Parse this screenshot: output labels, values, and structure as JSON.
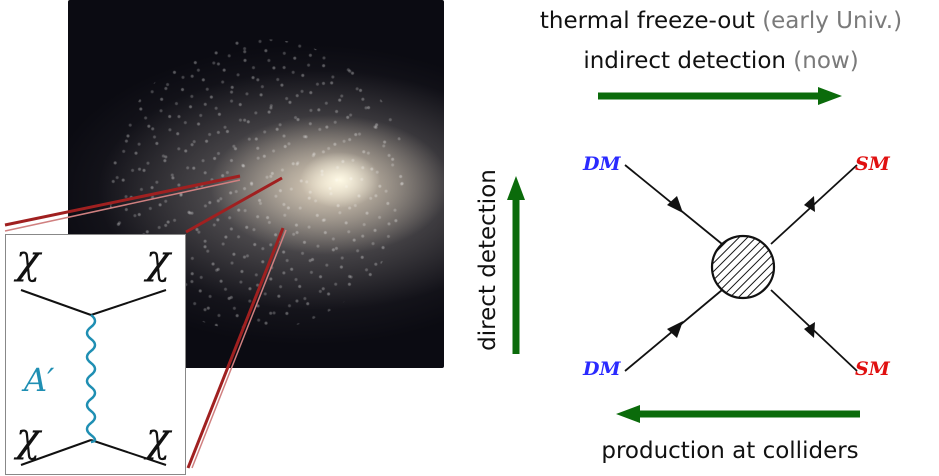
{
  "captions": {
    "freeze_out": "thermal freeze-out",
    "freeze_out_note": "(early Univ.)",
    "indirect": "indirect detection",
    "indirect_note": "(now)",
    "direct": "direct detection",
    "production": "production at colliders"
  },
  "vertex_labels": {
    "top_left": "DM",
    "top_right": "SM",
    "bottom_left": "DM",
    "bottom_right": "SM"
  },
  "inset_diagram": {
    "top_left": "χ",
    "top_right": "χ",
    "bottom_left": "χ",
    "bottom_right": "χ",
    "mediator": "A′"
  },
  "colors": {
    "arrow_green": "#0b6b0b",
    "dm_blue": "#2a2aff",
    "sm_red": "#e01010",
    "mediator_teal": "#1f8fb3",
    "pointer_red": "#a02020"
  }
}
